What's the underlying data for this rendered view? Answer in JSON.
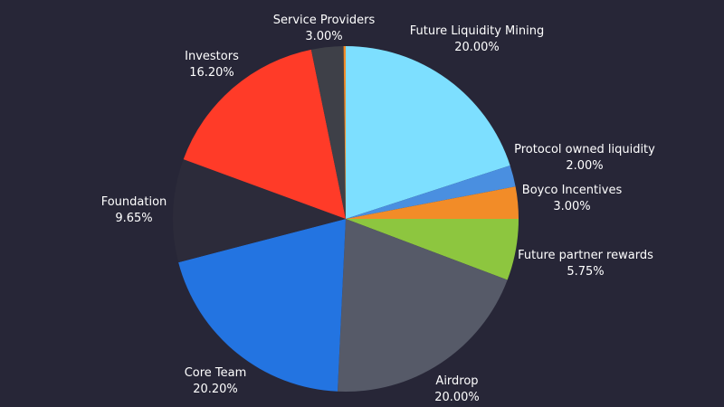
{
  "chart_data": {
    "type": "pie",
    "title": "",
    "background": "#272637",
    "start_angle_deg": 0,
    "direction": "clockwise",
    "slices": [
      {
        "label": "Future Liquidity Mining",
        "percent_text": "20.00%",
        "value": 20.0,
        "color": "#7ddfff"
      },
      {
        "label": "Protocol owned liquidity",
        "percent_text": "2.00%",
        "value": 2.0,
        "color": "#4a8fe0"
      },
      {
        "label": "Boyco Incentives",
        "percent_text": "3.00%",
        "value": 3.0,
        "color": "#f28c28"
      },
      {
        "label": "Future partner rewards",
        "percent_text": "5.75%",
        "value": 5.75,
        "color": "#8dc63f"
      },
      {
        "label": "Airdrop",
        "percent_text": "20.00%",
        "value": 20.0,
        "color": "#565a68"
      },
      {
        "label": "Core Team",
        "percent_text": "20.20%",
        "value": 20.2,
        "color": "#2374e1"
      },
      {
        "label": "Foundation",
        "percent_text": "9.65%",
        "value": 9.65,
        "color": "#2c2b3a"
      },
      {
        "label": "Investors",
        "percent_text": "16.20%",
        "value": 16.2,
        "color": "#ff3b28"
      },
      {
        "label": "Service Providers",
        "percent_text": "3.00%",
        "value": 3.0,
        "color": "#3e4048"
      },
      {
        "label": "",
        "percent_text": "",
        "value": 0.2,
        "color": "#f28c28"
      }
    ]
  }
}
